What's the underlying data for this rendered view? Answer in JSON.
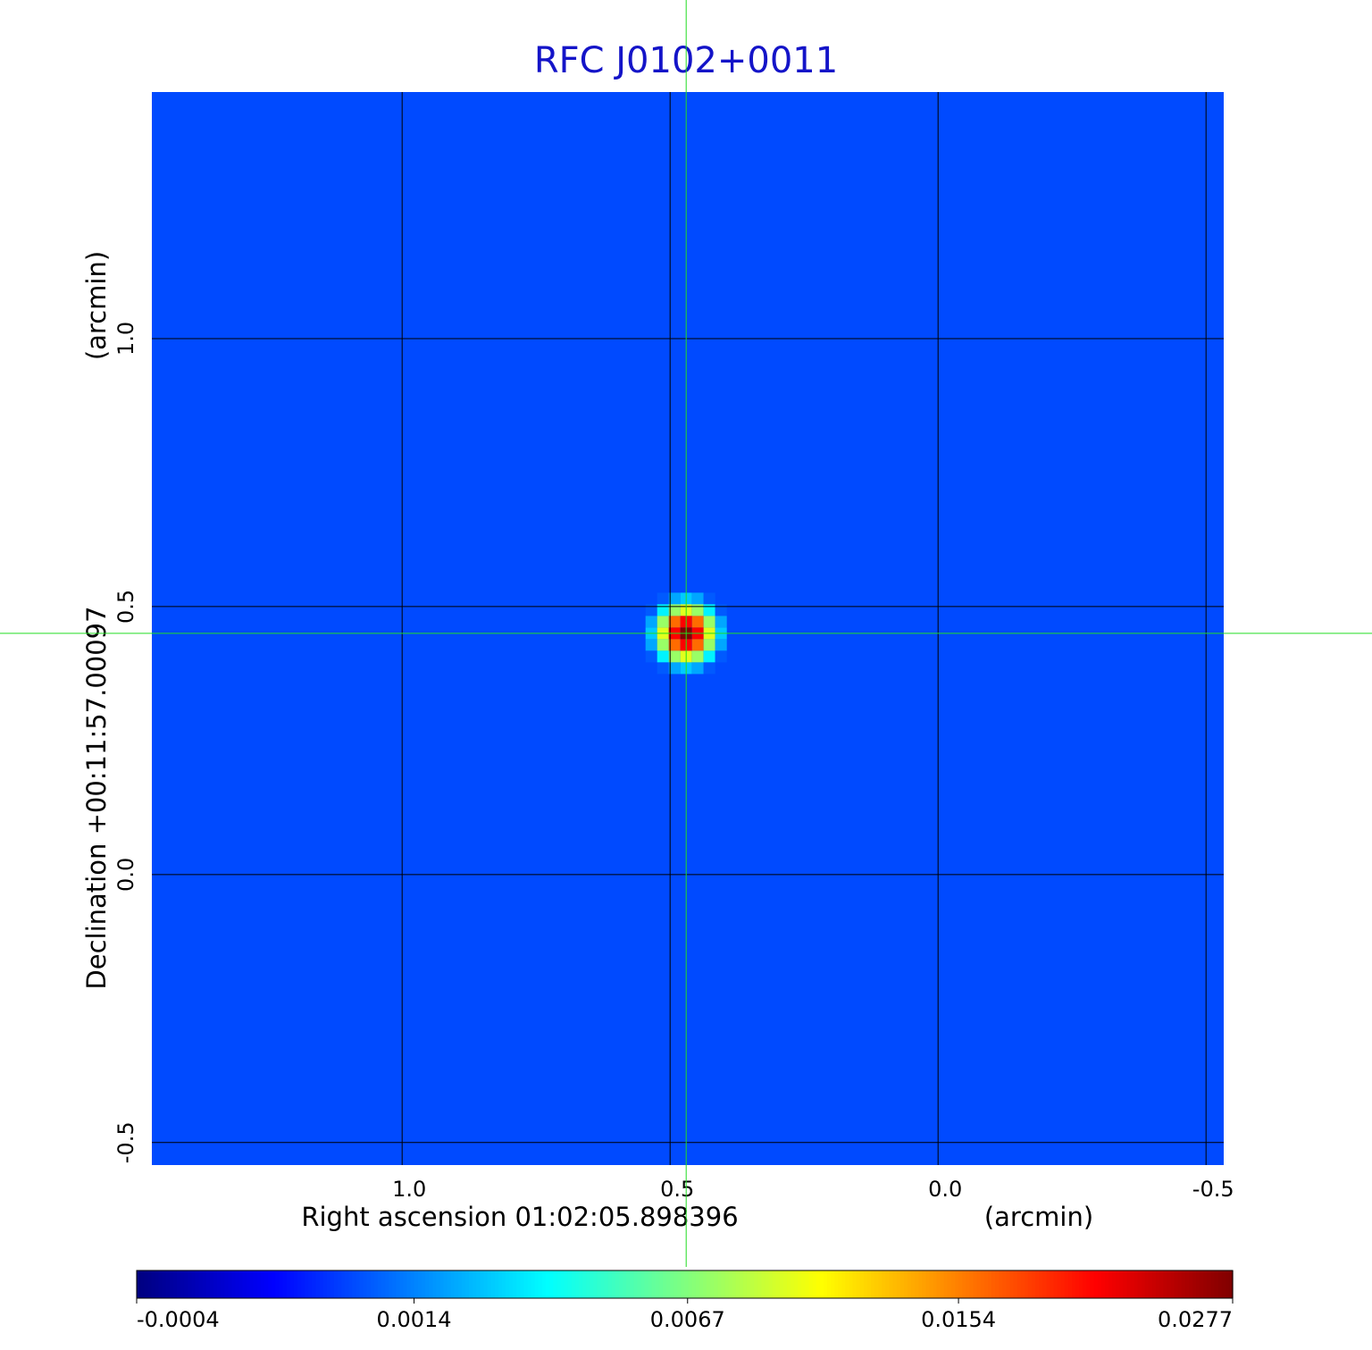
{
  "chart_data": {
    "type": "image",
    "title": "RFC J0102+0011",
    "xlabel": "Right ascension  01:02:05.898396",
    "xunit": "(arcmin)",
    "ylabel": "Declination  +00:11:57.00097",
    "yunit": "(arcmin)",
    "xlim": [
      1.467,
      -0.533
    ],
    "ylim": [
      -0.542,
      1.46
    ],
    "xticks": [
      {
        "value": 1,
        "label": "1.0"
      },
      0.5,
      {
        "value": 0,
        "label": "0.0"
      },
      -0.5
    ],
    "yticks": [
      {
        "value": 1,
        "label": "1.0"
      },
      0.5,
      {
        "value": 0,
        "label": "0.0"
      },
      -0.5
    ],
    "grid": true,
    "colormap": "jet",
    "colorbar_scale": "sqrt",
    "clim": [
      -0.0004,
      0.0277
    ],
    "colorbar_ticks": [
      -0.0004,
      0.0014,
      0.0067,
      0.0154,
      0.0277
    ],
    "background_level": 0.0007,
    "source": {
      "x": 0.47,
      "y": 0.45,
      "peak": 0.0277,
      "fwhm": 0.07
    }
  }
}
